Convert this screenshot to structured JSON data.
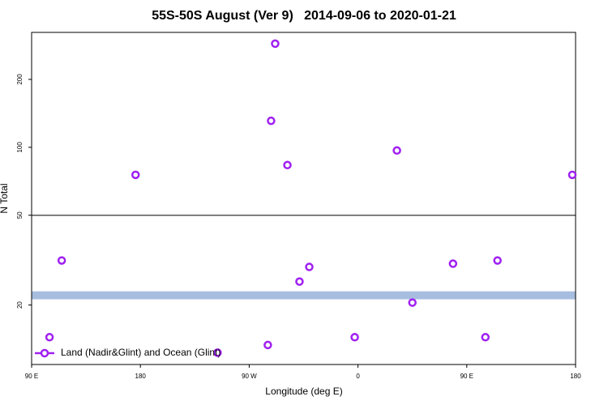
{
  "chart_data": {
    "type": "scatter",
    "title": "55S-50S August (Ver 9)   2014-09-06 to 2020-01-21",
    "x_label": "Longitude (deg E)",
    "y_label": "N Total",
    "xlim": [
      90,
      540
    ],
    "xticks": [
      {
        "value": 90,
        "label": "90 E"
      },
      {
        "value": 180,
        "label": "180"
      },
      {
        "value": 270,
        "label": "90 W"
      },
      {
        "value": 360,
        "label": "0"
      },
      {
        "value": 450,
        "label": "90 E"
      },
      {
        "value": 540,
        "label": "180"
      }
    ],
    "ylim": [
      10.9,
      323
    ],
    "yticks": [
      20,
      50,
      100,
      200
    ],
    "ylog": true,
    "hline": 50,
    "hline_color": "#555555",
    "band": [
      21.2,
      23
    ],
    "band_color": "#a7bde0",
    "legend": "bottom-left",
    "series": [
      {
        "name": "Land (Nadir&Glint) and Ocean (Glint)",
        "color": "#a020f0",
        "x": [
          104.8,
          114.9,
          176,
          243.8,
          285.4,
          288.1,
          291.5,
          301.6,
          311.6,
          319.7,
          357.3,
          392.2,
          405,
          438.6,
          465.4,
          475.4,
          537.3
        ],
        "values": [
          14.4,
          31.5,
          75.5,
          12.3,
          13.3,
          131,
          288,
          83.4,
          25.4,
          29.5,
          14.4,
          96.8,
          20.5,
          30.5,
          14.4,
          31.5,
          75.5
        ]
      }
    ]
  }
}
